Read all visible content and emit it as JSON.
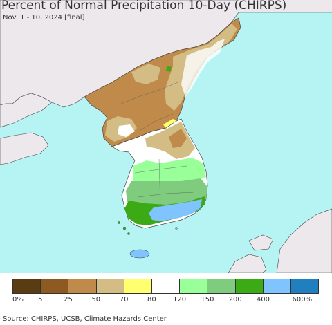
{
  "title": "Percent of Normal Precipitation 10-Day (CHIRPS)",
  "subtitle": "Nov. 1 - 10, 2024 [final]",
  "legend": {
    "colors": [
      "#5a3c12",
      "#8d5a22",
      "#c08a4a",
      "#d3bd85",
      "#ffff70",
      "#ffffff",
      "#99ff99",
      "#7fcc7f",
      "#3caa14",
      "#80c4ff",
      "#1f7fbf"
    ],
    "labels": [
      "0%",
      "5",
      "25",
      "50",
      "70",
      "80",
      "120",
      "150",
      "200",
      "400",
      "600%"
    ]
  },
  "source": "Source: CHIRPS, UCSB, Climate Hazards Center",
  "colors": {
    "ocean": "#b6f4f4",
    "neighbor_land": "#ece8ec",
    "border": "#444444"
  }
}
